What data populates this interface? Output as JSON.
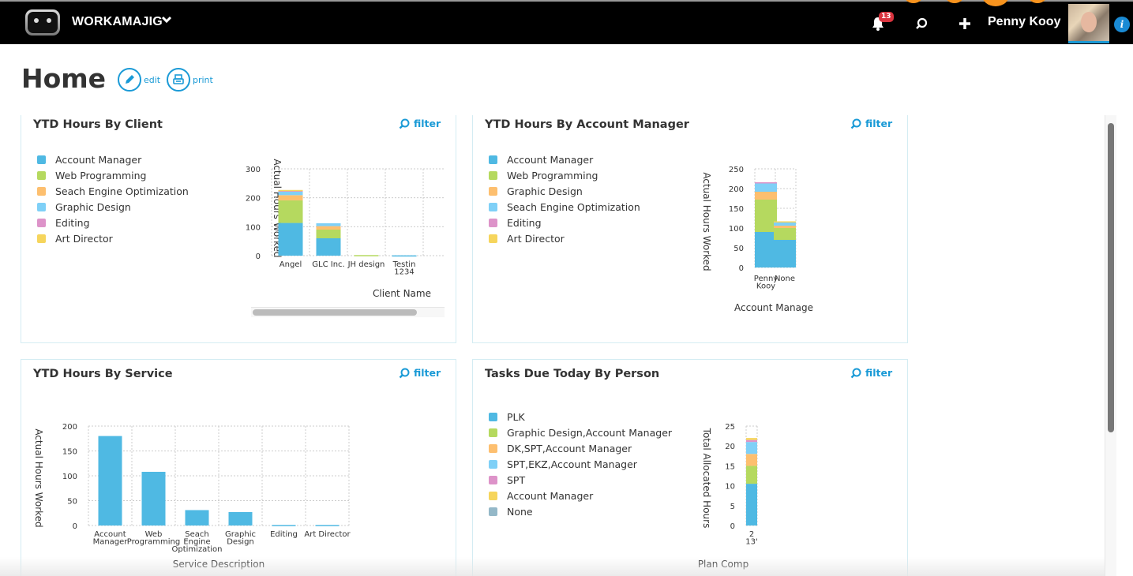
{
  "app": {
    "brand": "WORKAMAJIG",
    "notifications_count": "13",
    "user_name": "Penny Kooy",
    "info_label": "i"
  },
  "header": {
    "title": "Home",
    "edit_label": "edit",
    "print_label": "print"
  },
  "colors": {
    "accent": "#1a9ad6",
    "topbar": "#000000",
    "badge": "#d9343f"
  },
  "widgets": [
    {
      "title": "YTD Hours By Client",
      "filter_label": "filter",
      "legend": [
        {
          "label": "Account Manager",
          "color": "#4fb9e3"
        },
        {
          "label": "Web Programming",
          "color": "#b5d95f"
        },
        {
          "label": "Seach Engine Optimization",
          "color": "#fdbf6f"
        },
        {
          "label": "Graphic Design",
          "color": "#7fd0f7"
        },
        {
          "label": "Editing",
          "color": "#dd93c9"
        },
        {
          "label": "Art Director",
          "color": "#f6d55c"
        }
      ]
    },
    {
      "title": "YTD Hours By Account Manager",
      "filter_label": "filter",
      "legend": [
        {
          "label": "Account Manager",
          "color": "#4fb9e3"
        },
        {
          "label": "Web Programming",
          "color": "#b5d95f"
        },
        {
          "label": "Graphic Design",
          "color": "#fdbf6f"
        },
        {
          "label": "Seach Engine Optimization",
          "color": "#7fd0f7"
        },
        {
          "label": "Editing",
          "color": "#dd93c9"
        },
        {
          "label": "Art Director",
          "color": "#f6d55c"
        }
      ]
    },
    {
      "title": "YTD Hours By Service",
      "filter_label": "filter"
    },
    {
      "title": "Tasks Due Today By Person",
      "filter_label": "filter",
      "legend": [
        {
          "label": "PLK",
          "color": "#4fb9e3"
        },
        {
          "label": "Graphic Design,Account Manager",
          "color": "#b5d95f"
        },
        {
          "label": "DK,SPT,Account Manager",
          "color": "#fdbf6f"
        },
        {
          "label": "SPT,EKZ,Account Manager",
          "color": "#7fd0f7"
        },
        {
          "label": "SPT",
          "color": "#dd93c9"
        },
        {
          "label": "Account Manager",
          "color": "#f6d55c"
        },
        {
          "label": "None",
          "color": "#94b8c8"
        }
      ]
    }
  ],
  "chart_data": [
    {
      "type": "bar",
      "stacked": true,
      "title": "YTD Hours By Client",
      "xlabel": "Client Name",
      "ylabel": "Actual Hours Worked",
      "ylim": [
        0,
        300
      ],
      "yticks": [
        0,
        100,
        200,
        300
      ],
      "categories": [
        "Angel",
        "GLC Inc.",
        "JH design",
        "Testin 1234"
      ],
      "series": [
        {
          "name": "Account Manager",
          "color": "#4fb9e3",
          "values": [
            113,
            60,
            0,
            1
          ]
        },
        {
          "name": "Web Programming",
          "color": "#b5d95f",
          "values": [
            78,
            30,
            2,
            0
          ]
        },
        {
          "name": "Seach Engine Optimization",
          "color": "#fdbf6f",
          "values": [
            18,
            12,
            0,
            0
          ]
        },
        {
          "name": "Graphic Design",
          "color": "#7fd0f7",
          "values": [
            15,
            10,
            0,
            0
          ]
        },
        {
          "name": "Editing",
          "color": "#dd93c9",
          "values": [
            1,
            0,
            0,
            0
          ]
        },
        {
          "name": "Art Director",
          "color": "#f6d55c",
          "values": [
            2,
            0,
            0,
            0
          ]
        }
      ],
      "grid": true
    },
    {
      "type": "bar",
      "stacked": true,
      "title": "YTD Hours By Account Manager",
      "xlabel": "Account Manage",
      "ylabel": "Actual Hours Worked",
      "ylim": [
        0,
        250
      ],
      "yticks": [
        0,
        50,
        100,
        150,
        200,
        250
      ],
      "categories": [
        "Penny Kooy",
        "None"
      ],
      "series": [
        {
          "name": "Account Manager",
          "color": "#4fb9e3",
          "values": [
            90,
            70
          ]
        },
        {
          "name": "Web Programming",
          "color": "#b5d95f",
          "values": [
            82,
            30
          ]
        },
        {
          "name": "Graphic Design",
          "color": "#fdbf6f",
          "values": [
            20,
            6
          ]
        },
        {
          "name": "Seach Engine Optimization",
          "color": "#7fd0f7",
          "values": [
            22,
            10
          ]
        },
        {
          "name": "Editing",
          "color": "#dd93c9",
          "values": [
            2,
            0
          ]
        },
        {
          "name": "Art Director",
          "color": "#f6d55c",
          "values": [
            0,
            1
          ]
        }
      ],
      "grid": true
    },
    {
      "type": "bar",
      "title": "YTD Hours By Service",
      "xlabel": "Service Description",
      "ylabel": "Actual Hours Worked",
      "ylim": [
        0,
        200
      ],
      "yticks": [
        0,
        50,
        100,
        150,
        200
      ],
      "categories": [
        "Account Manager",
        "Web Programming",
        "Seach Engine Optimization",
        "Graphic Design",
        "Editing",
        "Art Director"
      ],
      "values": [
        180,
        108,
        31,
        27,
        1,
        1
      ],
      "color": "#4fb9e3",
      "grid": true
    },
    {
      "type": "bar",
      "stacked": true,
      "title": "Tasks Due Today By Person",
      "xlabel": "Plan Comp",
      "ylabel": "Total Allocated Hours",
      "ylim": [
        0,
        25
      ],
      "yticks": [
        0,
        5,
        10,
        15,
        20,
        25
      ],
      "categories": [
        "2 13"
      ],
      "series": [
        {
          "name": "PLK",
          "color": "#4fb9e3",
          "values": [
            10.5
          ]
        },
        {
          "name": "Graphic Design,Account Manager",
          "color": "#b5d95f",
          "values": [
            4.5
          ]
        },
        {
          "name": "DK,SPT,Account Manager",
          "color": "#fdbf6f",
          "values": [
            3
          ]
        },
        {
          "name": "SPT,EKZ,Account Manager",
          "color": "#7fd0f7",
          "values": [
            3
          ]
        },
        {
          "name": "SPT",
          "color": "#dd93c9",
          "values": [
            0.5
          ]
        },
        {
          "name": "Account Manager",
          "color": "#f6d55c",
          "values": [
            0.5
          ]
        },
        {
          "name": "None",
          "color": "#94b8c8",
          "values": [
            0
          ]
        }
      ],
      "grid": true
    }
  ]
}
